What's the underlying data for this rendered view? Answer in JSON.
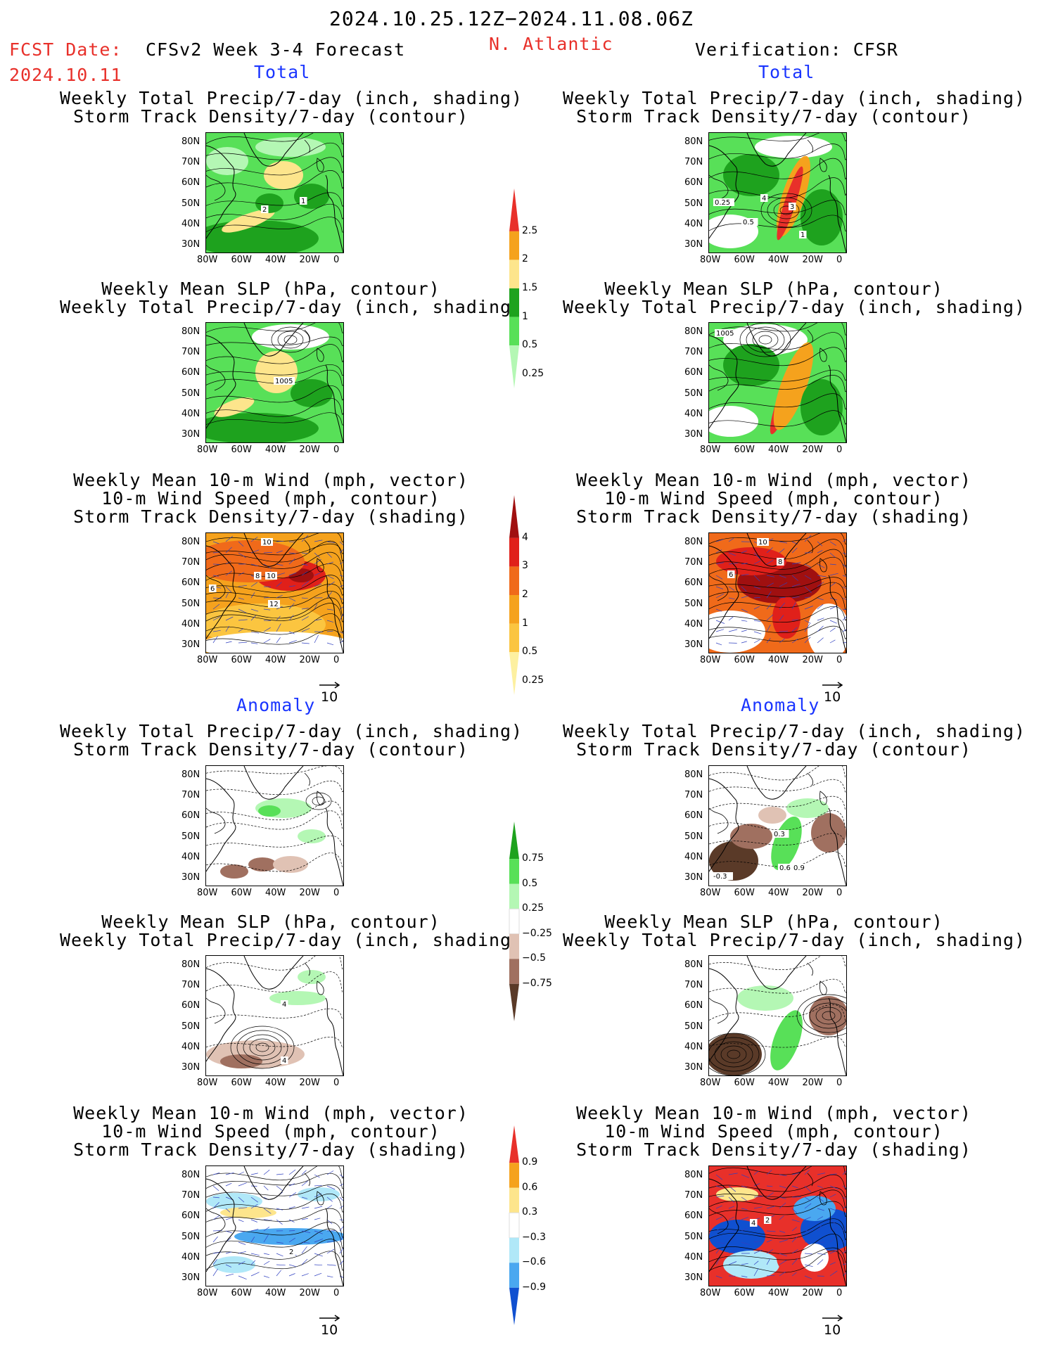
{
  "header": {
    "period": "2024.10.25.12Z−2024.11.08.06Z",
    "fcst_label": "FCST Date:",
    "fcst_date": "2024.10.11",
    "model": "CFSv2 Week 3-4 Forecast",
    "region": "N. Atlantic",
    "verification": "Verification: CFSR"
  },
  "sections": {
    "total": "Total",
    "anomaly": "Anomaly"
  },
  "panel_titles": {
    "precip_storm": [
      "Weekly Total Precip/7-day (inch, shading)",
      "Storm Track Density/7-day (contour)"
    ],
    "slp_precip": [
      "Weekly Mean SLP (hPa, contour)",
      "Weekly Total Precip/7-day (inch, shading)"
    ],
    "wind_storm": [
      "Weekly Mean 10-m Wind (mph, vector)",
      "10-m Wind Speed (mph, contour)",
      "Storm Track Density/7-day (shading)"
    ]
  },
  "axes": {
    "lat": [
      "80N",
      "70N",
      "60N",
      "50N",
      "40N",
      "30N"
    ],
    "lon": [
      "80W",
      "60W",
      "40W",
      "20W",
      "0"
    ]
  },
  "vector_ref": "10",
  "colorbars": {
    "precip_total": {
      "labels": [
        "2.5",
        "2",
        "1.5",
        "1",
        "0.5",
        "0.25"
      ],
      "colors": [
        "#e8302a",
        "#f5a21d",
        "#fde58c",
        "#1ea21e",
        "#58e058",
        "#b4f7b4"
      ]
    },
    "storm_total": {
      "labels": [
        "4",
        "3",
        "2",
        "1",
        "0.5",
        "0.25"
      ],
      "colors": [
        "#a01010",
        "#e0201a",
        "#f06a1a",
        "#f5a21d",
        "#fbc540",
        "#fdf0a0"
      ]
    },
    "precip_anom": {
      "labels": [
        "0.75",
        "0.5",
        "0.25",
        "−0.25",
        "−0.5",
        "−0.75"
      ],
      "colors": [
        "#1ea21e",
        "#58e058",
        "#b4f7b4",
        "#ffffff",
        "#e0c2b4",
        "#a07060",
        "#5a3a28"
      ]
    },
    "storm_anom": {
      "labels": [
        "0.9",
        "0.6",
        "0.3",
        "−0.3",
        "−0.6",
        "−0.9"
      ],
      "colors": [
        "#e8302a",
        "#f5a21d",
        "#fde58c",
        "#ffffff",
        "#b0e8f8",
        "#4aa8f0",
        "#1050d0"
      ]
    }
  },
  "map_labels": {
    "f_precip": [
      "2",
      "1"
    ],
    "v_precip": [
      "0.25",
      "4",
      "3",
      "0.5",
      "1"
    ],
    "f_slp": [
      "1005"
    ],
    "v_slp": [
      "1005"
    ],
    "f_wind": [
      "10",
      "8",
      "10",
      "6",
      "12"
    ],
    "v_wind": [
      "10",
      "8",
      "6"
    ],
    "f_precip_anom": [],
    "v_precip_anom": [
      "0.3",
      "-0.3",
      "0.6",
      "0.9"
    ],
    "f_slp_anom": [
      "4",
      "4"
    ],
    "v_slp_anom": [],
    "f_wind_anom": [
      "2"
    ],
    "v_wind_anom": [
      "4",
      "2"
    ]
  }
}
